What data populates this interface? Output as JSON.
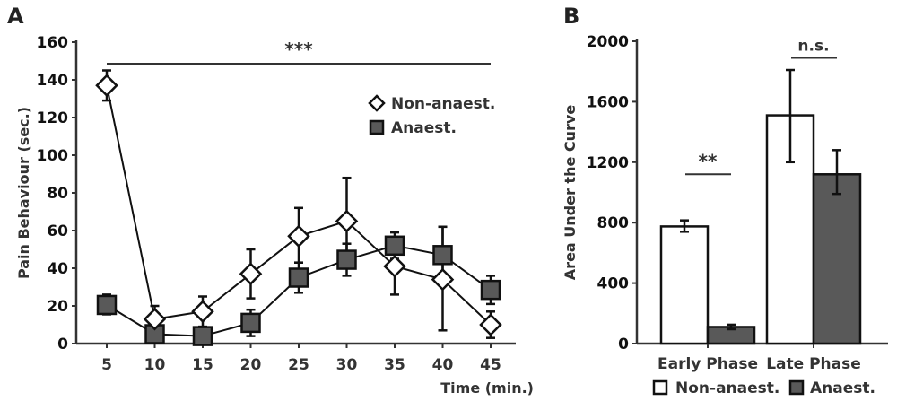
{
  "chart_data": [
    {
      "panel": "A",
      "type": "line",
      "title": "",
      "xlabel": "Time (min.)",
      "ylabel": "Pain Behaviour (sec.)",
      "x": [
        5,
        10,
        15,
        20,
        25,
        30,
        35,
        40,
        45
      ],
      "xlim": [
        5,
        45
      ],
      "ylim": [
        0,
        160
      ],
      "yticks": [
        0,
        20,
        40,
        60,
        80,
        100,
        120,
        140,
        160
      ],
      "xticks": [
        5,
        10,
        15,
        20,
        25,
        30,
        35,
        40,
        45
      ],
      "grid": false,
      "legend_position": "top-right",
      "series": [
        {
          "name": "Non-anaest.",
          "marker": "diamond-open",
          "values": [
            137,
            13,
            17,
            37,
            57,
            65,
            41,
            34,
            10
          ],
          "error_upper": [
            145,
            20,
            25,
            50,
            72,
            88,
            53,
            62,
            17
          ],
          "error_lower": [
            129,
            7,
            9,
            24,
            43,
            42,
            26,
            7,
            3
          ]
        },
        {
          "name": "Anaest.",
          "marker": "square-filled",
          "values": [
            20.5,
            5,
            4,
            11,
            35,
            44.5,
            52,
            47,
            28.5
          ],
          "error_upper": [
            26,
            9,
            7,
            18,
            43,
            53,
            59,
            62,
            36
          ],
          "error_lower": [
            15.5,
            1,
            1,
            4,
            27,
            36,
            45,
            32,
            21
          ]
        }
      ],
      "annotations": [
        {
          "text": "***",
          "from_x": 5,
          "to_x": 45,
          "y": 148
        }
      ]
    },
    {
      "panel": "B",
      "type": "bar",
      "title": "",
      "xlabel": "",
      "ylabel": "Area Under the Curve",
      "categories": [
        "Early Phase",
        "Late Phase"
      ],
      "ylim": [
        0,
        2000
      ],
      "yticks": [
        0,
        400,
        800,
        1200,
        1600,
        2000
      ],
      "grid": false,
      "legend_position": "bottom",
      "series": [
        {
          "name": "Non-anaest.",
          "values": [
            775,
            1510
          ],
          "error_upper": [
            815,
            1810
          ],
          "error_lower": [
            740,
            1200
          ]
        },
        {
          "name": "Anaest.",
          "values": [
            110,
            1120
          ],
          "error_upper": [
            125,
            1280
          ],
          "error_lower": [
            95,
            990
          ]
        }
      ],
      "annotations": [
        {
          "text": "**",
          "category": "Early Phase",
          "y": 1120
        },
        {
          "text": "n.s.",
          "category": "Late Phase",
          "y": 1890
        }
      ]
    }
  ],
  "labels": {
    "panel_a": "A",
    "panel_b": "B"
  },
  "colors": {
    "open_fill": "#ffffff",
    "filled": "#595959",
    "stroke": "#111111",
    "axis": "#333333"
  }
}
